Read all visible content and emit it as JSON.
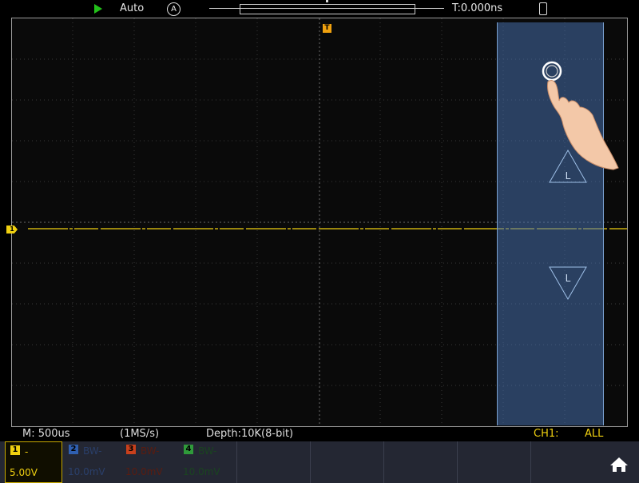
{
  "topbar": {
    "mode": "Auto",
    "acquire_icon_letter": "A",
    "time_position": "T:0.000ns"
  },
  "screen": {
    "trigger_marker_letter": "T",
    "channel_marker_label": "1"
  },
  "overlay": {
    "triangle_up_label": "L",
    "triangle_down_label": "L"
  },
  "status": {
    "timebase": "M: 500us",
    "sample_rate": "(1MS/s)",
    "depth": "Depth:10K(8-bit)",
    "ch1_trigger": "CH1:",
    "trigger_mode": "ALL"
  },
  "channels": [
    {
      "num": "1",
      "line1": "-",
      "line2": "5.00V",
      "color": "#f0d010"
    },
    {
      "num": "2",
      "line1": "BW-",
      "line2": "10.0mV",
      "color": "#2f5fb0"
    },
    {
      "num": "3",
      "line1": "BW-",
      "line2": "10.0mV",
      "color": "#c8401c"
    },
    {
      "num": "4",
      "line1": "BW-",
      "line2": "10.0mV",
      "color": "#2f9a3a"
    }
  ],
  "colors": {
    "trace": "#f0d010",
    "run": "#22c01a",
    "highlight": "#466eaa"
  }
}
